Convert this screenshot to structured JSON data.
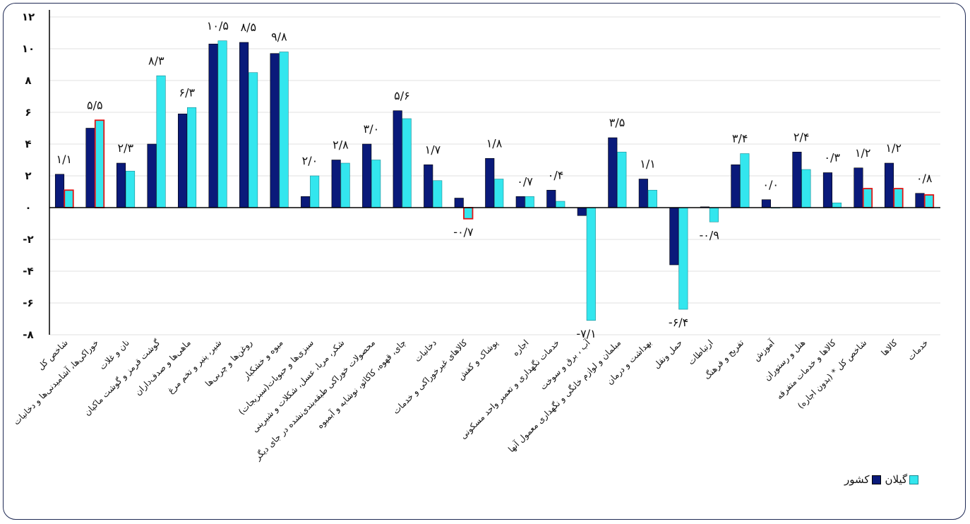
{
  "chart_data": {
    "type": "bar",
    "ylim": [
      -8,
      12
    ],
    "y_ticks": [
      "-۸",
      "-۶",
      "-۴",
      "-۲",
      "۰",
      "۲",
      "۴",
      "۶",
      "۸",
      "۱۰",
      "۱۲"
    ],
    "y_tick_values": [
      -8,
      -6,
      -4,
      -2,
      0,
      2,
      4,
      6,
      8,
      10,
      12
    ],
    "grid": true,
    "legend_position": "bottom-right",
    "categories": [
      "شاخص کل",
      "خوراکی‌ها، آشامیدنی‌ها و دخانیات",
      "نان و غلات",
      "گوشت قرمز و گوشت ماکیان",
      "ماهی‌ها و صدف‌داران",
      "شیر، پنیر و تخم مرغ",
      "روغن‌ها و چربی‌ها",
      "میوه و خشکبار",
      "سبزی‌ها و حبوبات(سبزیجات)",
      "شکر، مربا، عسل، شکلات و شیرینی",
      "محصولات خوراکی طبقه‌بندی‌نشده در جای دیگر",
      "چای، قهوه، کاکائو، نوشابه و آبمیوه",
      "دخانیات",
      "کالاهای غیرخوراکی و خدمات",
      "پوشاک و کفش",
      "اجاره",
      "خدمات نگهداری و تعمیر واحد مسکونی",
      "آب ، برق و سوخت",
      "مبلمان و لوازم خانگی و نگهداری معمول آنها",
      "بهداشت و درمان",
      "حمل ونقل",
      "ارتباطات",
      "تفریح و فرهنگ",
      "آموزش",
      "هتل و رستوران",
      "کالاها و خدمات متفرقه",
      "شاخص کل * (بدون اجاره)",
      "کالاها",
      "خدمات"
    ],
    "series": [
      {
        "name": "کشور",
        "color": "#0a1a7a",
        "values": [
          2.1,
          5.0,
          2.8,
          4.0,
          5.9,
          10.3,
          10.4,
          9.7,
          0.7,
          3.0,
          4.0,
          6.1,
          2.7,
          0.6,
          3.1,
          0.7,
          1.1,
          -0.5,
          4.4,
          1.8,
          -3.6,
          0.05,
          2.7,
          0.5,
          3.5,
          2.2,
          2.5,
          2.8,
          0.9
        ]
      },
      {
        "name": "گیلان",
        "color": "#33e6ee",
        "values": [
          1.1,
          5.5,
          2.3,
          8.3,
          6.3,
          10.5,
          8.5,
          9.8,
          2.0,
          2.8,
          3.0,
          5.6,
          1.7,
          -0.7,
          1.8,
          0.7,
          0.4,
          -7.1,
          3.5,
          1.1,
          -6.4,
          -0.9,
          3.4,
          0.0,
          2.4,
          0.3,
          1.2,
          1.2,
          0.8
        ]
      }
    ],
    "highlighted_gilan_indices": [
      0,
      1,
      13,
      26,
      27,
      28
    ],
    "highlight_color": "#e01515",
    "data_labels": [
      {
        "i": 0,
        "text": "۱/۱"
      },
      {
        "i": 1,
        "text": "۵/۵"
      },
      {
        "i": 2,
        "text": "۲/۳"
      },
      {
        "i": 3,
        "text": "۸/۳"
      },
      {
        "i": 4,
        "text": "۶/۳"
      },
      {
        "i": 5,
        "text": "۱۰/۵"
      },
      {
        "i": 6,
        "text": "۸/۵"
      },
      {
        "i": 7,
        "text": "۹/۸"
      },
      {
        "i": 8,
        "text": "۲/۰"
      },
      {
        "i": 9,
        "text": "۲/۸"
      },
      {
        "i": 10,
        "text": "۳/۰"
      },
      {
        "i": 11,
        "text": "۵/۶"
      },
      {
        "i": 12,
        "text": "۱/۷"
      },
      {
        "i": 13,
        "text": "-۰/۷"
      },
      {
        "i": 14,
        "text": "۱/۸"
      },
      {
        "i": 15,
        "text": "۰/۷"
      },
      {
        "i": 16,
        "text": "۰/۴"
      },
      {
        "i": 17,
        "text": "-۷/۱"
      },
      {
        "i": 18,
        "text": "۳/۵"
      },
      {
        "i": 19,
        "text": "۱/۱"
      },
      {
        "i": 20,
        "text": "-۶/۴"
      },
      {
        "i": 21,
        "text": "-۰/۹"
      },
      {
        "i": 22,
        "text": "۳/۴"
      },
      {
        "i": 23,
        "text": "۰/۰"
      },
      {
        "i": 24,
        "text": "۲/۴"
      },
      {
        "i": 25,
        "text": "۰/۳"
      },
      {
        "i": 26,
        "text": "۱/۲"
      },
      {
        "i": 27,
        "text": "۱/۲"
      },
      {
        "i": 28,
        "text": "۰/۸"
      }
    ]
  },
  "legend": {
    "items": [
      {
        "label": "گیلان",
        "color": "#33e6ee"
      },
      {
        "label": "کشور",
        "color": "#0a1a7a"
      }
    ]
  }
}
